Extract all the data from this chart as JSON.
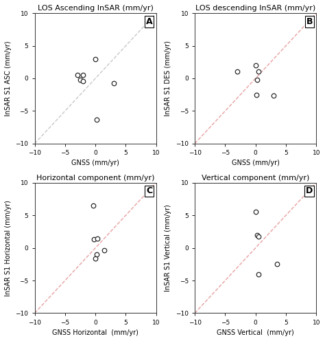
{
  "panels": [
    {
      "label": "A",
      "title": "LOS Ascending InSAR (mm/yr)",
      "xlabel": "GNSS (mm/yr)",
      "ylabel": "InSAR S1 ASC (mm/yr)",
      "xlim": [
        -10,
        10
      ],
      "ylim": [
        -10,
        10
      ],
      "xticks": [
        -10,
        -5,
        0,
        5,
        10
      ],
      "yticks": [
        -10,
        -5,
        0,
        5,
        10
      ],
      "scatter_x": [
        -3.0,
        -2.5,
        -2.0,
        -2.0,
        0.0,
        0.2,
        3.0
      ],
      "scatter_y": [
        0.5,
        -0.2,
        0.5,
        -0.4,
        3.0,
        -6.3,
        -0.7
      ],
      "diag_color": "#c8c8c8",
      "diag_style": "--"
    },
    {
      "label": "B",
      "title": "LOS descending InSAR (mm/yr)",
      "xlabel": "GNSS (mm/yr)",
      "ylabel": "InSAR S1 DES (mm/yr)",
      "xlim": [
        -10,
        10
      ],
      "ylim": [
        -10,
        10
      ],
      "xticks": [
        -10,
        -5,
        0,
        5,
        10
      ],
      "yticks": [
        -10,
        -5,
        0,
        5,
        10
      ],
      "scatter_x": [
        -3.0,
        0.0,
        0.5,
        0.3,
        0.2,
        3.0
      ],
      "scatter_y": [
        1.0,
        2.0,
        1.1,
        -0.2,
        -2.5,
        -2.6
      ],
      "diag_color": "#e8a0a0",
      "diag_style": "--"
    },
    {
      "label": "C",
      "title": "Horizontal component (mm/yr)",
      "xlabel": "GNSS Horizontal  (mm/yr)",
      "ylabel": "InSAR S1 Horizontal (mm/yr)",
      "xlim": [
        -10,
        10
      ],
      "ylim": [
        -10,
        10
      ],
      "xticks": [
        -10,
        -5,
        0,
        5,
        10
      ],
      "yticks": [
        -10,
        -5,
        0,
        5,
        10
      ],
      "scatter_x": [
        -0.3,
        -0.2,
        0.3,
        0.2,
        0.0,
        1.5
      ],
      "scatter_y": [
        6.5,
        1.3,
        1.4,
        -1.0,
        -1.6,
        -0.4
      ],
      "diag_color": "#e8a0a0",
      "diag_style": "--"
    },
    {
      "label": "D",
      "title": "Vertical component (mm/yr)",
      "xlabel": "GNSS Vertical  (mm/yr)",
      "ylabel": "InSAR S1 Vertical (mm/yr)",
      "xlim": [
        -10,
        10
      ],
      "ylim": [
        -10,
        10
      ],
      "xticks": [
        -10,
        -5,
        0,
        5,
        10
      ],
      "yticks": [
        -10,
        -5,
        0,
        5,
        10
      ],
      "scatter_x": [
        0.0,
        0.3,
        0.5,
        0.5,
        3.5
      ],
      "scatter_y": [
        5.5,
        2.0,
        1.7,
        -4.0,
        -2.5
      ],
      "diag_color": "#e8a0a0",
      "diag_style": "--"
    }
  ],
  "figure_bg": "#ffffff",
  "marker_facecolor": "white",
  "marker_edgecolor": "#2a2a2a",
  "marker_size": 22,
  "marker_linewidth": 0.9,
  "title_fontsize": 8,
  "label_fontsize": 7,
  "tick_fontsize": 6.5,
  "panel_label_fontsize": 9
}
